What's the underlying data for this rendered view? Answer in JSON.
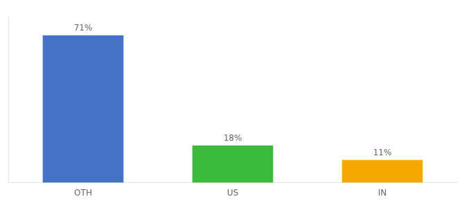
{
  "chart_data": {
    "type": "bar",
    "categories": [
      "OTH",
      "US",
      "IN"
    ],
    "values": [
      71,
      18,
      11
    ],
    "value_labels": [
      "71%",
      "18%",
      "11%"
    ],
    "colors": [
      "#4472c4",
      "#3cba3c",
      "#f5a800"
    ],
    "ylim": [
      0,
      80
    ],
    "grid": false,
    "data_labels": true,
    "tick_labels": "x"
  }
}
